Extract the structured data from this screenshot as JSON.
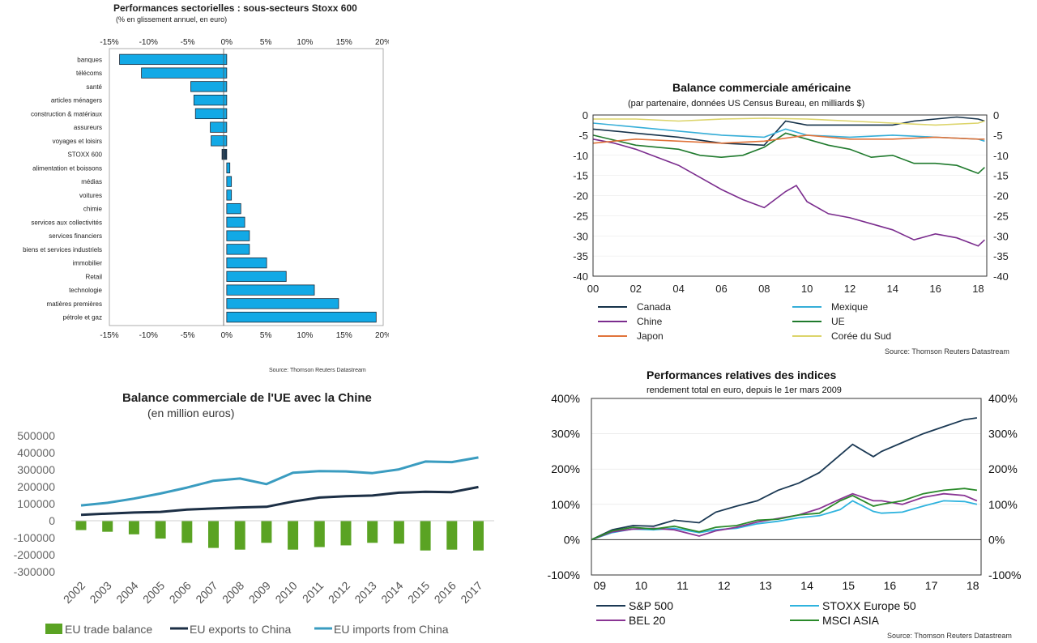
{
  "colors": {
    "bar_blue": "#12a9e6",
    "dark_navy": "#1c3a53",
    "canada": "#16324a",
    "chine": "#7b2d8e",
    "japon": "#e0733a",
    "mexique": "#35aed8",
    "ue": "#1f7a2d",
    "coree": "#dcd46a",
    "green_bar": "#5aa323",
    "eu_exports": "#1c2f45",
    "eu_imports": "#3a9cc0",
    "sp500": "#1b3954",
    "stoxx50": "#2fb3de",
    "bel20": "#8a3594",
    "msci": "#2a8a2a"
  },
  "chart_data": [
    {
      "id": "sectors",
      "type": "bar",
      "orientation": "horizontal",
      "title": "Performances sectorielles : sous-secteurs Stoxx 600",
      "subtitle": "(% en glissement annuel, en euro)",
      "categories": [
        "banques",
        "télécoms",
        "santé",
        "articles ménagers",
        "construction & matériaux",
        "assureurs",
        "voyages et loisirs",
        "STOXX 600",
        "alimentation et boissons",
        "médias",
        "voitures",
        "chimie",
        "services aux collectivités",
        "services financiers",
        "biens et services industriels",
        "immobilier",
        "Retail",
        "technologie",
        "matières premières",
        "pétrole et gaz"
      ],
      "values": [
        -13.7,
        -10.9,
        -4.6,
        -4.2,
        -4.0,
        -2.1,
        -2.0,
        -0.6,
        0.4,
        0.6,
        0.6,
        1.8,
        2.3,
        2.9,
        2.9,
        5.1,
        7.6,
        11.2,
        14.3,
        19.1
      ],
      "highlight": "STOXX 600",
      "xlim": [
        -15,
        20
      ],
      "xticks": [
        "-15%",
        "-10%",
        "-5%",
        "0%",
        "5%",
        "10%",
        "15%",
        "20%"
      ],
      "source": "Source: Thomson Reuters Datastream"
    },
    {
      "id": "us_trade",
      "type": "line",
      "title": "Balance commerciale américaine",
      "subtitle": "(par partenaire, données US Census Bureau, en milliards $)",
      "ylim": [
        -40,
        0
      ],
      "yticks": [
        "0",
        "-5",
        "-10",
        "-15",
        "-20",
        "-25",
        "-30",
        "-35",
        "-40"
      ],
      "xlim": [
        2000,
        2018.4
      ],
      "xticks": [
        "00",
        "02",
        "04",
        "06",
        "08",
        "10",
        "12",
        "14",
        "16",
        "18"
      ],
      "series": [
        {
          "name": "Canada",
          "color": "canada",
          "x": [
            2000,
            2002,
            2004,
            2006,
            2008,
            2009,
            2010,
            2012,
            2014,
            2015,
            2016,
            2017,
            2018,
            2018.3
          ],
          "y": [
            -3.5,
            -4.5,
            -5.5,
            -7.0,
            -7.5,
            -1.5,
            -2.5,
            -2.5,
            -2.5,
            -1.5,
            -1.0,
            -0.5,
            -1.0,
            -1.5
          ]
        },
        {
          "name": "Mexique",
          "color": "mexique",
          "x": [
            2000,
            2002,
            2004,
            2006,
            2008,
            2009,
            2010,
            2012,
            2014,
            2016,
            2018,
            2018.3
          ],
          "y": [
            -2.0,
            -3.0,
            -4.0,
            -5.0,
            -5.5,
            -3.5,
            -5.0,
            -5.5,
            -5.0,
            -5.5,
            -6.0,
            -6.5
          ]
        },
        {
          "name": "Chine",
          "color": "chine",
          "x": [
            2000,
            2001,
            2002,
            2003,
            2004,
            2005,
            2006,
            2007,
            2008,
            2009,
            2009.5,
            2010,
            2011,
            2012,
            2013,
            2014,
            2015,
            2016,
            2017,
            2018,
            2018.3
          ],
          "y": [
            -6.0,
            -7.0,
            -8.5,
            -10.5,
            -12.5,
            -15.5,
            -18.5,
            -21.0,
            -23.0,
            -19.0,
            -17.5,
            -21.5,
            -24.5,
            -25.5,
            -27.0,
            -28.5,
            -31.0,
            -29.5,
            -30.5,
            -32.5,
            -31.0
          ]
        },
        {
          "name": "UE",
          "color": "ue",
          "x": [
            2000,
            2002,
            2004,
            2005,
            2006,
            2007,
            2008,
            2009,
            2010,
            2011,
            2012,
            2013,
            2014,
            2015,
            2016,
            2017,
            2018,
            2018.3
          ],
          "y": [
            -5.0,
            -7.5,
            -8.5,
            -10.0,
            -10.5,
            -10.0,
            -8.0,
            -4.5,
            -6.0,
            -7.5,
            -8.5,
            -10.5,
            -10.0,
            -12.0,
            -12.0,
            -12.5,
            -14.5,
            -13.0
          ]
        },
        {
          "name": "Japon",
          "color": "japon",
          "x": [
            2000,
            2002,
            2004,
            2006,
            2008,
            2010,
            2012,
            2014,
            2016,
            2018,
            2018.3
          ],
          "y": [
            -7.0,
            -6.0,
            -6.5,
            -7.0,
            -6.5,
            -5.0,
            -6.0,
            -6.0,
            -5.5,
            -6.0,
            -6.0
          ]
        },
        {
          "name": "Corée du Sud",
          "color": "coree",
          "x": [
            2000,
            2002,
            2004,
            2006,
            2008,
            2010,
            2012,
            2014,
            2016,
            2018,
            2018.3
          ],
          "y": [
            -1.0,
            -1.0,
            -1.5,
            -1.0,
            -0.8,
            -1.0,
            -1.5,
            -2.0,
            -2.5,
            -2.0,
            -1.5
          ]
        }
      ],
      "legend": [
        "Canada",
        "Mexique",
        "Chine",
        "UE",
        "Japon",
        "Corée du Sud"
      ],
      "source": "Source: Thomson Reuters Datastream"
    },
    {
      "id": "eu_china",
      "type": "bar",
      "title": "Balance commerciale de l'UE avec la Chine",
      "subtitle": "(en million euros)",
      "categories": [
        "2002",
        "2003",
        "2004",
        "2005",
        "2006",
        "2007",
        "2008",
        "2009",
        "2010",
        "2011",
        "2012",
        "2013",
        "2014",
        "2015",
        "2016",
        "2017"
      ],
      "ylim": [
        -300000,
        500000
      ],
      "yticks": [
        "500000",
        "400000",
        "300000",
        "200000",
        "100000",
        "0",
        "-100000",
        "-200000",
        "-300000"
      ],
      "series": [
        {
          "name": "EU trade balance",
          "kind": "bar",
          "color": "green_bar",
          "values": [
            -55000,
            -65000,
            -80000,
            -105000,
            -130000,
            -160000,
            -170000,
            -130000,
            -170000,
            -155000,
            -145000,
            -130000,
            -135000,
            -175000,
            -170000,
            -175000
          ]
        },
        {
          "name": "EU exports to China",
          "kind": "line",
          "color": "eu_exports",
          "values": [
            35000,
            42000,
            48000,
            52000,
            65000,
            72000,
            78000,
            82000,
            113000,
            136000,
            144000,
            148000,
            165000,
            170000,
            168000,
            198000
          ]
        },
        {
          "name": "EU imports from China",
          "kind": "line",
          "color": "eu_imports",
          "values": [
            90000,
            105000,
            130000,
            160000,
            195000,
            235000,
            248000,
            215000,
            282000,
            292000,
            290000,
            280000,
            302000,
            348000,
            345000,
            372000
          ]
        }
      ]
    },
    {
      "id": "indices",
      "type": "line",
      "title": "Performances relatives des indices",
      "subtitle": "rendement total en euro, depuis le 1er mars 2009",
      "ylim": [
        -100,
        400
      ],
      "yticks": [
        "400%",
        "300%",
        "200%",
        "100%",
        "0%",
        "-100%"
      ],
      "xlim": [
        2009.0,
        2018.4
      ],
      "xticks": [
        "09",
        "10",
        "11",
        "12",
        "13",
        "14",
        "15",
        "16",
        "17",
        "18"
      ],
      "series": [
        {
          "name": "S&P 500",
          "color": "sp500",
          "x": [
            2009.0,
            2009.5,
            2010,
            2010.5,
            2011,
            2011.6,
            2012,
            2012.5,
            2013,
            2013.5,
            2014,
            2014.5,
            2015,
            2015.3,
            2015.8,
            2016,
            2016.5,
            2017,
            2017.5,
            2018,
            2018.3
          ],
          "y": [
            0,
            28,
            40,
            38,
            55,
            48,
            78,
            95,
            110,
            140,
            160,
            190,
            240,
            270,
            235,
            250,
            275,
            300,
            320,
            340,
            345
          ]
        },
        {
          "name": "STOXX Europe 50",
          "color": "stoxx50",
          "x": [
            2009.0,
            2009.5,
            2010,
            2010.5,
            2011,
            2011.6,
            2012,
            2012.5,
            2013,
            2013.5,
            2014,
            2014.5,
            2015,
            2015.3,
            2015.8,
            2016,
            2016.5,
            2017,
            2017.5,
            2018,
            2018.3
          ],
          "y": [
            0,
            20,
            30,
            28,
            32,
            20,
            28,
            32,
            45,
            52,
            62,
            68,
            85,
            110,
            80,
            75,
            78,
            95,
            110,
            108,
            100
          ]
        },
        {
          "name": "BEL 20",
          "color": "bel20",
          "x": [
            2009.0,
            2009.5,
            2010,
            2010.5,
            2011,
            2011.6,
            2012,
            2012.5,
            2013,
            2013.5,
            2014,
            2014.5,
            2015,
            2015.3,
            2015.8,
            2016,
            2016.5,
            2017,
            2017.5,
            2018,
            2018.3
          ],
          "y": [
            0,
            22,
            30,
            32,
            28,
            10,
            25,
            35,
            50,
            60,
            70,
            88,
            115,
            130,
            110,
            110,
            100,
            120,
            130,
            125,
            110
          ]
        },
        {
          "name": "MSCI ASIA",
          "color": "msci",
          "x": [
            2009.0,
            2009.5,
            2010,
            2010.5,
            2011,
            2011.6,
            2012,
            2012.5,
            2013,
            2013.5,
            2014,
            2014.5,
            2015,
            2015.3,
            2015.8,
            2016,
            2016.5,
            2017,
            2017.5,
            2018,
            2018.3
          ],
          "y": [
            0,
            25,
            35,
            30,
            38,
            22,
            35,
            40,
            55,
            58,
            70,
            75,
            110,
            125,
            95,
            100,
            110,
            130,
            140,
            145,
            140
          ]
        }
      ],
      "legend": [
        "S&P 500",
        "STOXX Europe 50",
        "BEL 20",
        "MSCI ASIA"
      ],
      "source": "Source: Thomson Reuters Datastream"
    }
  ]
}
